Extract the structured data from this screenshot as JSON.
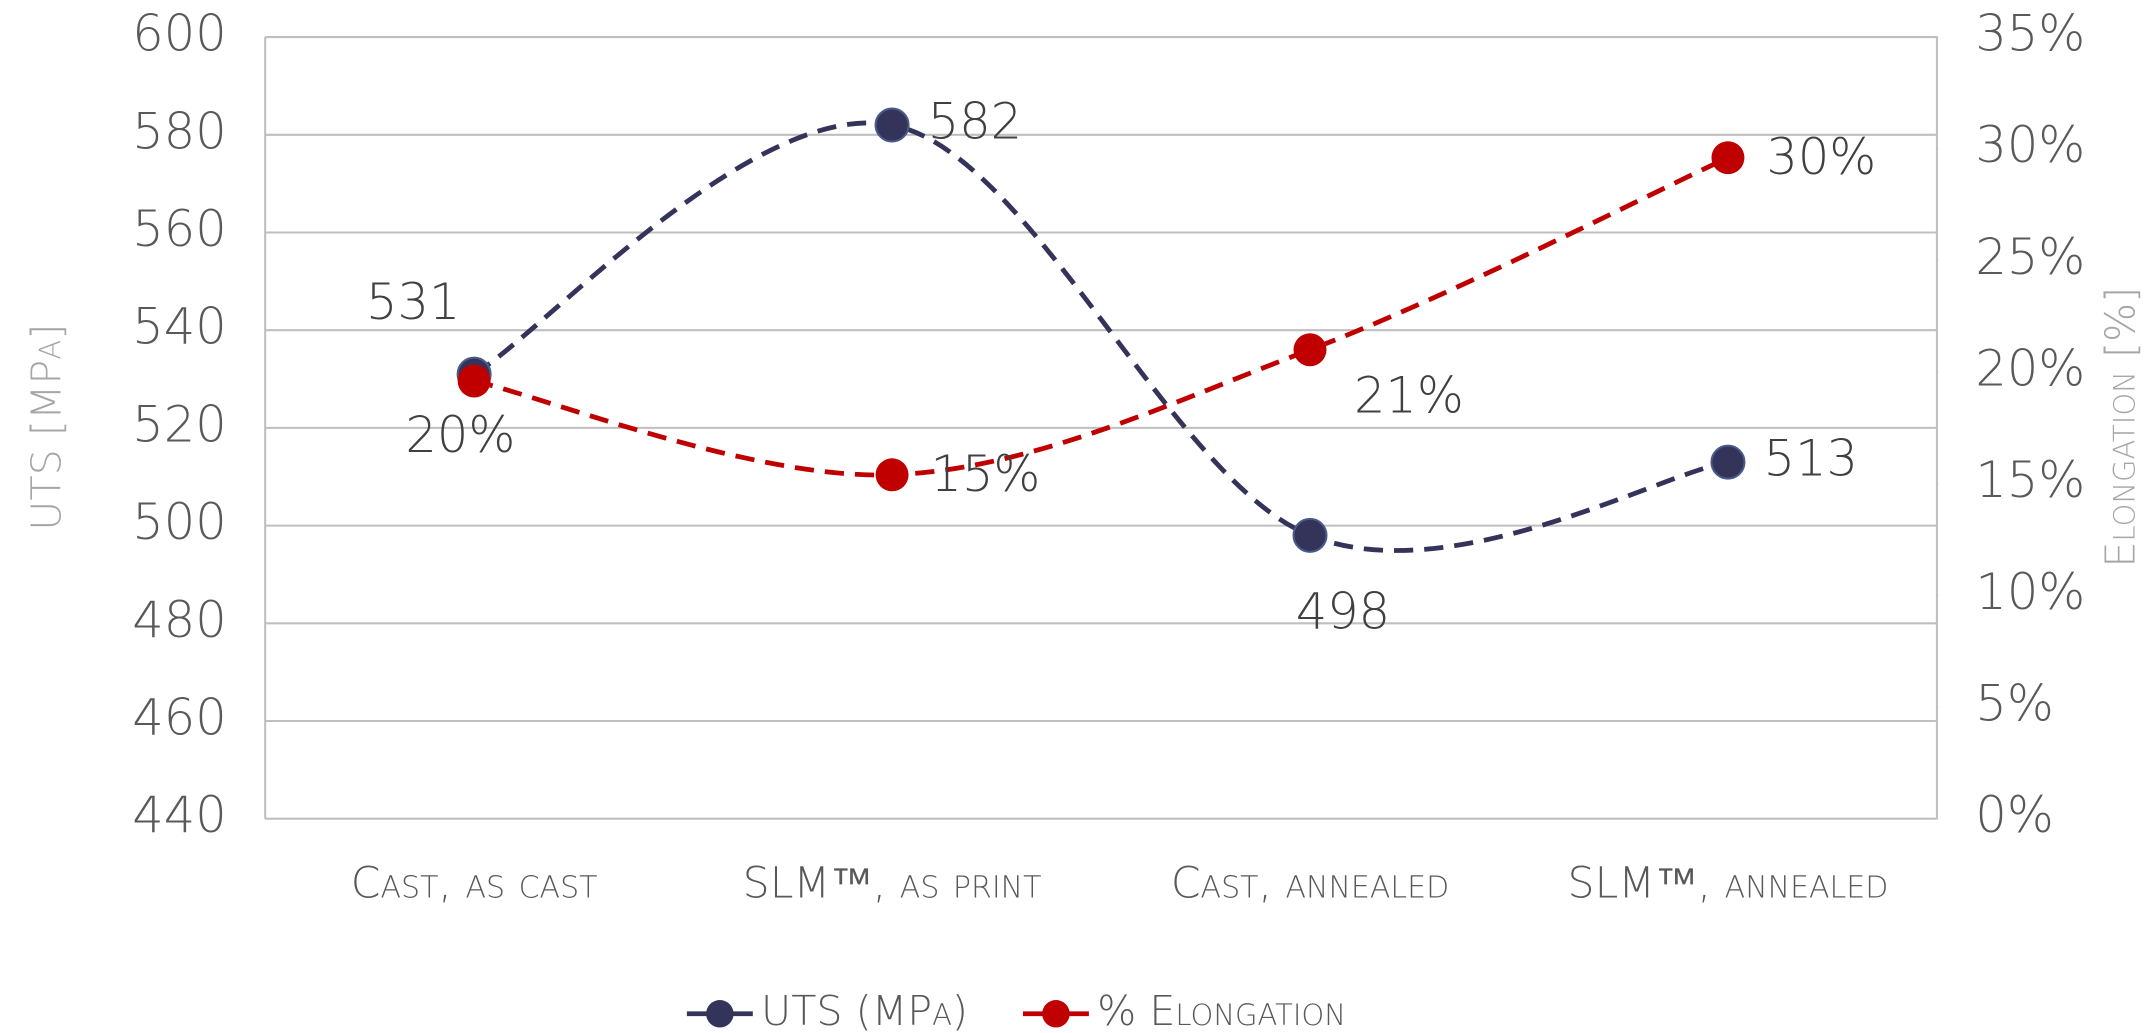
{
  "chart_data": {
    "type": "line",
    "categories": [
      "Cast, as cast",
      "SLM™, as print",
      "Cast, annealed",
      "SLM™, annealed"
    ],
    "series": [
      {
        "name": "UTS (MPa)",
        "color": "#34335a",
        "values": [
          531,
          582,
          498,
          513
        ]
      },
      {
        "name": "% Elongation",
        "color": "#c00000",
        "axis": "y2",
        "values": [
          19.6,
          15.4,
          21,
          29.6
        ],
        "value_labels": [
          "20%",
          "15%",
          "21%",
          "30%"
        ]
      }
    ],
    "ylabel": "UTS [MPa]",
    "y2label": "Elongation [%]",
    "ylim": [
      440,
      600
    ],
    "yticks": [
      440,
      460,
      480,
      500,
      520,
      540,
      560,
      580,
      600
    ],
    "y2lim": [
      0,
      35
    ],
    "y2ticks": [
      {
        "value": 0,
        "label": "0%"
      },
      {
        "value": 5,
        "label": "5%"
      },
      {
        "value": 10,
        "label": "10%"
      },
      {
        "value": 15,
        "label": "15%"
      },
      {
        "value": 20,
        "label": "20%"
      },
      {
        "value": 25,
        "label": "25%"
      },
      {
        "value": 30,
        "label": "30%"
      },
      {
        "value": 35,
        "label": "35%"
      }
    ],
    "grid": true,
    "smooth": true,
    "dashed": true,
    "legend": "bottom"
  }
}
